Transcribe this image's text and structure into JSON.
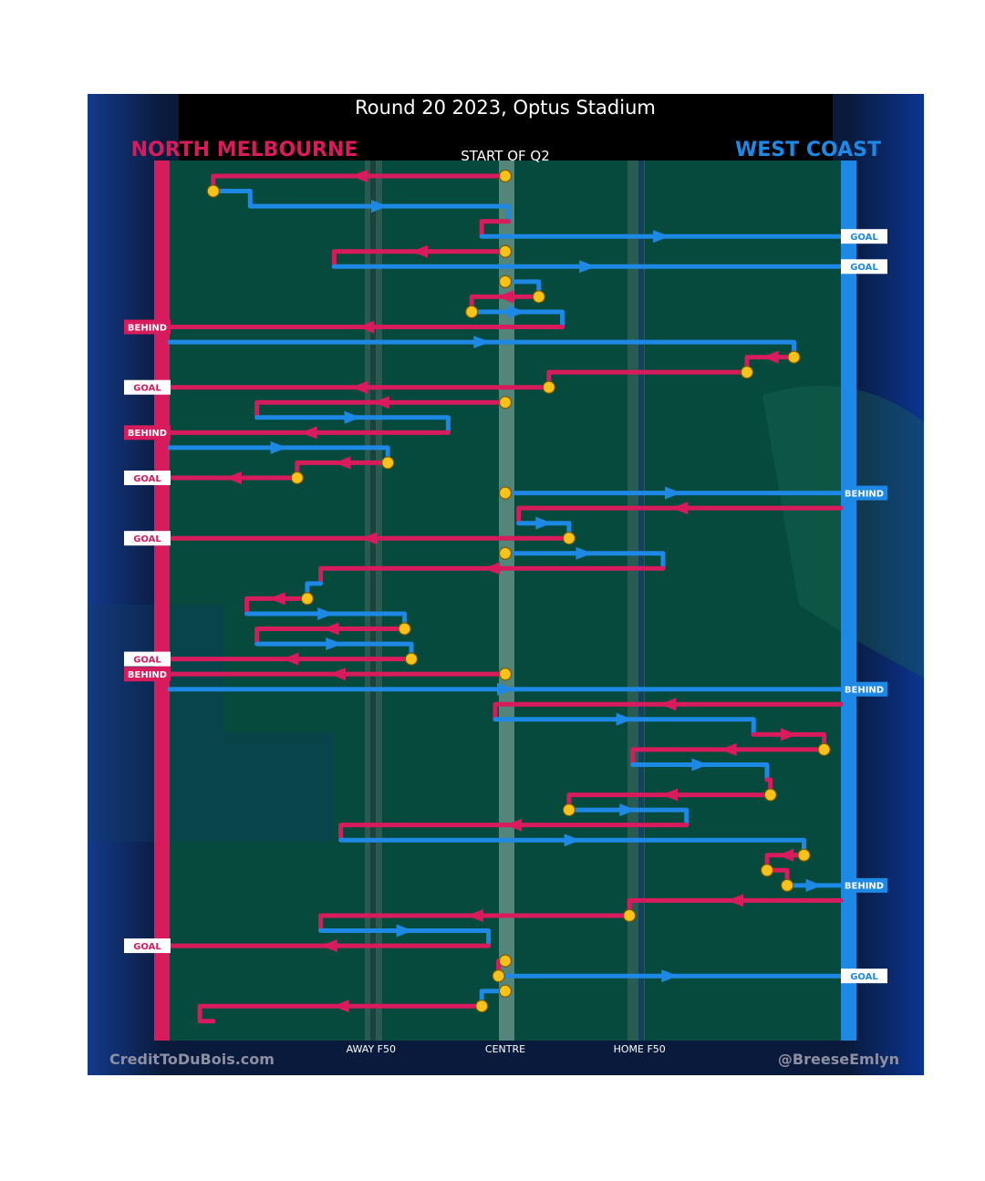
{
  "header": {
    "title": "Round 20 2023, Optus Stadium",
    "home_team": "NORTH MELBOURNE",
    "away_team": "WEST COAST",
    "period_label": "START OF Q2"
  },
  "footer": {
    "credit_left": "CreditToDuBois.com",
    "credit_right": "@BreeseEmlyn"
  },
  "colors": {
    "north": "#d81b5c",
    "west": "#1e88e5",
    "field": "#054a3d",
    "stop": "#f7c21a",
    "title_bar": "#000000"
  },
  "chart_data": {
    "type": "line",
    "x_axis": {
      "range": [
        0,
        100
      ],
      "ticks": [
        {
          "label": "AWAY F50",
          "x": 30
        },
        {
          "label": "CENTRE",
          "x": 50
        },
        {
          "label": "HOME F50",
          "x": 70
        }
      ]
    },
    "y_axis": {
      "range": [
        1,
        57
      ],
      "direction": "down"
    },
    "grid": false,
    "teams": {
      "N": "NORTH MELBOURNE",
      "W": "WEST COAST"
    },
    "segments": [
      {
        "team": "N",
        "pts": [
          [
            50,
            1
          ],
          [
            6.5,
            1
          ],
          [
            6.5,
            2
          ]
        ],
        "start_stop": true,
        "end_stop": true
      },
      {
        "team": "W",
        "pts": [
          [
            6.5,
            2
          ],
          [
            12,
            2
          ],
          [
            12,
            3
          ],
          [
            50.5,
            3
          ],
          [
            50.5,
            4
          ]
        ]
      },
      {
        "team": "N",
        "pts": [
          [
            50.5,
            4
          ],
          [
            46.5,
            4
          ],
          [
            46.5,
            5
          ]
        ]
      },
      {
        "team": "W",
        "pts": [
          [
            46.5,
            5
          ],
          [
            100,
            5
          ]
        ],
        "result": "GOAL"
      },
      {
        "team": "N",
        "pts": [
          [
            50,
            6
          ],
          [
            24.5,
            6
          ],
          [
            24.5,
            7
          ]
        ],
        "start_stop": true
      },
      {
        "team": "W",
        "pts": [
          [
            24.5,
            7
          ],
          [
            100,
            7
          ]
        ],
        "result": "GOAL"
      },
      {
        "team": "W",
        "pts": [
          [
            50,
            8
          ],
          [
            55,
            8
          ],
          [
            55,
            9
          ]
        ],
        "start_stop": true,
        "end_stop": true
      },
      {
        "team": "N",
        "pts": [
          [
            55,
            9
          ],
          [
            45,
            9
          ],
          [
            45,
            10
          ]
        ],
        "end_stop": true
      },
      {
        "team": "W",
        "pts": [
          [
            45,
            10
          ],
          [
            58.5,
            10
          ],
          [
            58.5,
            11
          ]
        ]
      },
      {
        "team": "N",
        "pts": [
          [
            58.5,
            11
          ],
          [
            0,
            11
          ]
        ],
        "result": "BEHIND"
      },
      {
        "team": "W",
        "pts": [
          [
            0,
            12
          ],
          [
            93,
            12
          ],
          [
            93,
            13
          ]
        ],
        "end_stop": true
      },
      {
        "team": "N",
        "pts": [
          [
            93,
            13
          ],
          [
            86,
            13
          ],
          [
            86,
            14
          ]
        ],
        "end_stop": true
      },
      {
        "team": "N",
        "pts": [
          [
            86,
            14
          ],
          [
            56.5,
            14
          ],
          [
            56.5,
            15
          ],
          [
            0,
            15
          ]
        ],
        "end_stop_at": 2,
        "result": "GOAL"
      },
      {
        "team": "N",
        "pts": [
          [
            50,
            16
          ],
          [
            13,
            16
          ],
          [
            13,
            17
          ]
        ],
        "start_stop": true
      },
      {
        "team": "W",
        "pts": [
          [
            13,
            17
          ],
          [
            41.5,
            17
          ],
          [
            41.5,
            18
          ]
        ]
      },
      {
        "team": "N",
        "pts": [
          [
            41.5,
            18
          ],
          [
            0,
            18
          ]
        ],
        "result": "BEHIND"
      },
      {
        "team": "W",
        "pts": [
          [
            0,
            19
          ],
          [
            32.5,
            19
          ],
          [
            32.5,
            20
          ]
        ],
        "end_stop": true
      },
      {
        "team": "N",
        "pts": [
          [
            32.5,
            20
          ],
          [
            19,
            20
          ],
          [
            19,
            21
          ]
        ],
        "end_stop": true
      },
      {
        "team": "N",
        "pts": [
          [
            19,
            21
          ],
          [
            0,
            21
          ]
        ],
        "result": "GOAL"
      },
      {
        "team": "W",
        "pts": [
          [
            50,
            22
          ],
          [
            100,
            22
          ]
        ],
        "start_stop": true,
        "result": "BEHIND"
      },
      {
        "team": "N",
        "pts": [
          [
            100,
            23
          ],
          [
            52,
            23
          ],
          [
            52,
            24
          ]
        ]
      },
      {
        "team": "W",
        "pts": [
          [
            52,
            24
          ],
          [
            59.5,
            24
          ],
          [
            59.5,
            25
          ]
        ],
        "end_stop": true
      },
      {
        "team": "N",
        "pts": [
          [
            59.5,
            25
          ],
          [
            0,
            25
          ]
        ],
        "result": "GOAL"
      },
      {
        "team": "W",
        "pts": [
          [
            50,
            26
          ],
          [
            73.5,
            26
          ],
          [
            73.5,
            27
          ]
        ],
        "start_stop": true
      },
      {
        "team": "N",
        "pts": [
          [
            73.5,
            27
          ],
          [
            22.5,
            27
          ],
          [
            22.5,
            28
          ]
        ]
      },
      {
        "team": "W",
        "pts": [
          [
            22.5,
            28
          ],
          [
            20.5,
            28
          ],
          [
            20.5,
            29
          ]
        ],
        "end_stop": true
      },
      {
        "team": "N",
        "pts": [
          [
            20.5,
            29
          ],
          [
            11.5,
            29
          ],
          [
            11.5,
            30
          ]
        ]
      },
      {
        "team": "W",
        "pts": [
          [
            11.5,
            30
          ],
          [
            35,
            30
          ],
          [
            35,
            31
          ]
        ],
        "end_stop": true
      },
      {
        "team": "N",
        "pts": [
          [
            35,
            31
          ],
          [
            13,
            31
          ],
          [
            13,
            32
          ]
        ]
      },
      {
        "team": "W",
        "pts": [
          [
            13,
            32
          ],
          [
            36,
            32
          ],
          [
            36,
            33
          ]
        ],
        "end_stop": true
      },
      {
        "team": "N",
        "pts": [
          [
            36,
            33
          ],
          [
            0,
            33
          ]
        ],
        "result": "GOAL"
      },
      {
        "team": "N",
        "pts": [
          [
            50,
            34
          ],
          [
            0,
            34
          ]
        ],
        "start_stop": true,
        "result": "BEHIND"
      },
      {
        "team": "W",
        "pts": [
          [
            0,
            35
          ],
          [
            100,
            35
          ]
        ],
        "result": "BEHIND"
      },
      {
        "team": "N",
        "pts": [
          [
            100,
            36
          ],
          [
            48.5,
            36
          ],
          [
            48.5,
            37
          ]
        ]
      },
      {
        "team": "W",
        "pts": [
          [
            48.5,
            37
          ],
          [
            87,
            37
          ],
          [
            87,
            38
          ]
        ]
      },
      {
        "team": "N",
        "pts": [
          [
            87,
            38
          ],
          [
            97.5,
            38
          ],
          [
            97.5,
            39
          ]
        ],
        "end_stop": true
      },
      {
        "team": "N",
        "pts": [
          [
            97.5,
            39
          ],
          [
            69,
            39
          ],
          [
            69,
            40
          ]
        ]
      },
      {
        "team": "W",
        "pts": [
          [
            69,
            40
          ],
          [
            89,
            40
          ],
          [
            89,
            41
          ]
        ]
      },
      {
        "team": "N",
        "pts": [
          [
            89,
            41
          ],
          [
            89.5,
            41
          ],
          [
            89.5,
            42
          ]
        ],
        "end_stop": true
      },
      {
        "team": "N",
        "pts": [
          [
            89.5,
            42
          ],
          [
            59.5,
            42
          ],
          [
            59.5,
            43
          ]
        ]
      },
      {
        "team": "W",
        "pts": [
          [
            59.5,
            43
          ],
          [
            77,
            43
          ],
          [
            77,
            44
          ]
        ],
        "start_stop": true
      },
      {
        "team": "N",
        "pts": [
          [
            77,
            44
          ],
          [
            25.5,
            44
          ],
          [
            25.5,
            45
          ]
        ]
      },
      {
        "team": "W",
        "pts": [
          [
            25.5,
            45
          ],
          [
            94.5,
            45
          ],
          [
            94.5,
            46
          ]
        ],
        "end_stop": true
      },
      {
        "team": "N",
        "pts": [
          [
            94.5,
            46
          ],
          [
            89,
            46
          ],
          [
            89,
            47
          ]
        ],
        "end_stop": true
      },
      {
        "team": "N",
        "pts": [
          [
            89,
            47
          ],
          [
            92,
            47
          ],
          [
            92,
            48
          ]
        ],
        "end_stop": true
      },
      {
        "team": "W",
        "pts": [
          [
            92,
            48
          ],
          [
            100,
            48
          ]
        ],
        "result": "BEHIND"
      },
      {
        "team": "N",
        "pts": [
          [
            100,
            49
          ],
          [
            68.5,
            49
          ],
          [
            68.5,
            50
          ]
        ],
        "end_stop": true
      },
      {
        "team": "N",
        "pts": [
          [
            68.5,
            50
          ],
          [
            22.5,
            50
          ],
          [
            22.5,
            51
          ]
        ]
      },
      {
        "team": "W",
        "pts": [
          [
            22.5,
            51
          ],
          [
            47.5,
            51
          ],
          [
            47.5,
            52
          ]
        ]
      },
      {
        "team": "N",
        "pts": [
          [
            47.5,
            52
          ],
          [
            0,
            52
          ]
        ],
        "result": "GOAL"
      },
      {
        "team": "N",
        "pts": [
          [
            50,
            53
          ],
          [
            49,
            53
          ],
          [
            49,
            54
          ]
        ],
        "start_stop": true,
        "end_stop": true
      },
      {
        "team": "W",
        "pts": [
          [
            49,
            54
          ],
          [
            100,
            54
          ]
        ],
        "result": "GOAL"
      },
      {
        "team": "W",
        "pts": [
          [
            50,
            55
          ],
          [
            46.5,
            55
          ],
          [
            46.5,
            56
          ]
        ],
        "start_stop": true,
        "end_stop": true
      },
      {
        "team": "N",
        "pts": [
          [
            46.5,
            56
          ],
          [
            4.5,
            56
          ],
          [
            4.5,
            57
          ],
          [
            6.5,
            57
          ]
        ]
      }
    ]
  }
}
